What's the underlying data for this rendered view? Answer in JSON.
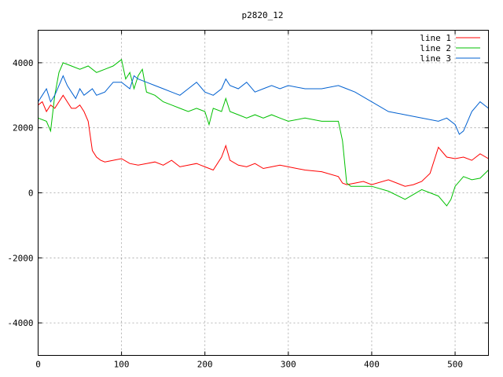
{
  "chart_data": {
    "type": "line",
    "title": "p2820_12",
    "xlabel": "",
    "ylabel": "",
    "xlim": [
      0,
      540
    ],
    "ylim": [
      -5000,
      5000
    ],
    "x_ticks": [
      0,
      100,
      200,
      300,
      400,
      500
    ],
    "y_ticks": [
      -4000,
      -2000,
      0,
      2000,
      4000
    ],
    "grid": true,
    "legend_position": "top-right",
    "series": [
      {
        "name": "line 1",
        "color": "#ff0000",
        "x": [
          0,
          5,
          10,
          15,
          20,
          25,
          30,
          35,
          40,
          45,
          50,
          55,
          60,
          65,
          70,
          75,
          80,
          90,
          100,
          110,
          120,
          130,
          140,
          150,
          160,
          170,
          180,
          190,
          200,
          210,
          220,
          225,
          230,
          240,
          250,
          260,
          270,
          280,
          290,
          300,
          320,
          340,
          360,
          365,
          370,
          380,
          390,
          400,
          420,
          440,
          450,
          460,
          470,
          480,
          490,
          500,
          510,
          520,
          530,
          540
        ],
        "y": [
          2700,
          2800,
          2500,
          2700,
          2600,
          2800,
          3000,
          2800,
          2600,
          2600,
          2700,
          2500,
          2200,
          1300,
          1100,
          1000,
          950,
          1000,
          1050,
          900,
          850,
          900,
          950,
          850,
          1000,
          800,
          850,
          900,
          800,
          700,
          1100,
          1450,
          1000,
          850,
          800,
          900,
          750,
          800,
          850,
          800,
          700,
          650,
          500,
          300,
          250,
          300,
          350,
          250,
          400,
          200,
          250,
          350,
          600,
          1400,
          1100,
          1050,
          1100,
          1000,
          1200,
          1050
        ]
      },
      {
        "name": "line 2",
        "color": "#00c000",
        "x": [
          0,
          10,
          15,
          20,
          25,
          30,
          40,
          50,
          60,
          70,
          80,
          90,
          100,
          105,
          110,
          115,
          120,
          125,
          130,
          140,
          150,
          160,
          170,
          180,
          190,
          200,
          205,
          210,
          220,
          225,
          230,
          240,
          250,
          260,
          270,
          280,
          290,
          300,
          320,
          340,
          360,
          365,
          370,
          375,
          380,
          400,
          420,
          440,
          460,
          480,
          490,
          495,
          500,
          510,
          520,
          530,
          540
        ],
        "y": [
          2300,
          2200,
          1900,
          3000,
          3700,
          4000,
          3900,
          3800,
          3900,
          3700,
          3800,
          3900,
          4100,
          3500,
          3700,
          3200,
          3600,
          3800,
          3100,
          3000,
          2800,
          2700,
          2600,
          2500,
          2600,
          2500,
          2100,
          2600,
          2500,
          2900,
          2500,
          2400,
          2300,
          2400,
          2300,
          2400,
          2300,
          2200,
          2300,
          2200,
          2200,
          1600,
          300,
          200,
          200,
          200,
          50,
          -200,
          100,
          -100,
          -400,
          -200,
          200,
          500,
          400,
          450,
          700
        ]
      },
      {
        "name": "line 3",
        "color": "#0060d0",
        "x": [
          0,
          5,
          10,
          15,
          20,
          25,
          30,
          35,
          40,
          45,
          50,
          55,
          60,
          65,
          70,
          80,
          90,
          100,
          110,
          115,
          120,
          130,
          140,
          150,
          160,
          170,
          180,
          190,
          200,
          210,
          220,
          225,
          230,
          240,
          250,
          260,
          270,
          280,
          290,
          300,
          320,
          340,
          360,
          370,
          380,
          400,
          420,
          440,
          460,
          480,
          490,
          500,
          505,
          510,
          515,
          520,
          530,
          540
        ],
        "y": [
          2800,
          3000,
          3200,
          2800,
          3000,
          3300,
          3600,
          3300,
          3100,
          2900,
          3200,
          3000,
          3100,
          3200,
          3000,
          3100,
          3400,
          3400,
          3200,
          3600,
          3500,
          3400,
          3300,
          3200,
          3100,
          3000,
          3200,
          3400,
          3100,
          3000,
          3200,
          3500,
          3300,
          3200,
          3400,
          3100,
          3200,
          3300,
          3200,
          3300,
          3200,
          3200,
          3300,
          3200,
          3100,
          2800,
          2500,
          2400,
          2300,
          2200,
          2300,
          2100,
          1800,
          1900,
          2200,
          2500,
          2800,
          2600
        ]
      }
    ]
  }
}
